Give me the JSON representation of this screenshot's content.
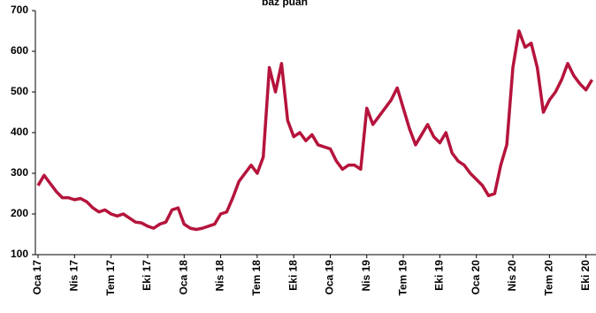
{
  "chart_data": {
    "type": "line",
    "title": "baz puan",
    "categories": [
      "Oca 17",
      null,
      null,
      null,
      null,
      null,
      "Nis 17",
      null,
      null,
      null,
      null,
      null,
      "Tem 17",
      null,
      null,
      null,
      null,
      null,
      "Eki 17",
      null,
      null,
      null,
      null,
      null,
      "Oca 18",
      null,
      null,
      null,
      null,
      null,
      "Nis 18",
      null,
      null,
      null,
      null,
      null,
      "Tem 18",
      null,
      null,
      null,
      null,
      null,
      "Eki 18",
      null,
      null,
      null,
      null,
      null,
      "Oca 19",
      null,
      null,
      null,
      null,
      null,
      "Nis 19",
      null,
      null,
      null,
      null,
      null,
      "Tem 19",
      null,
      null,
      null,
      null,
      null,
      "Eki 19",
      null,
      null,
      null,
      null,
      null,
      "Oca 20",
      null,
      null,
      null,
      null,
      null,
      "Nis 20",
      null,
      null,
      null,
      null,
      null,
      "Tem 20",
      null,
      null,
      null,
      null,
      null,
      "Eki 20",
      null
    ],
    "series": [
      {
        "color": "#b5143c",
        "values": [
          270,
          295,
          275,
          255,
          240,
          240,
          235,
          238,
          230,
          215,
          205,
          210,
          200,
          195,
          200,
          190,
          180,
          178,
          170,
          165,
          175,
          180,
          210,
          215,
          175,
          165,
          162,
          165,
          170,
          175,
          200,
          205,
          240,
          280,
          300,
          320,
          300,
          340,
          560,
          500,
          570,
          430,
          390,
          400,
          380,
          395,
          370,
          365,
          360,
          330,
          310,
          320,
          320,
          310,
          460,
          420,
          440,
          460,
          480,
          510,
          460,
          410,
          370,
          395,
          420,
          390,
          375,
          400,
          350,
          330,
          320,
          300,
          285,
          270,
          245,
          250,
          320,
          370,
          560,
          650,
          610,
          620,
          560,
          450,
          480,
          500,
          530,
          570,
          540,
          520,
          505,
          530
        ]
      }
    ],
    "ylim": [
      100,
      700
    ],
    "yticks": [
      100,
      200,
      300,
      400,
      500,
      600,
      700
    ]
  }
}
